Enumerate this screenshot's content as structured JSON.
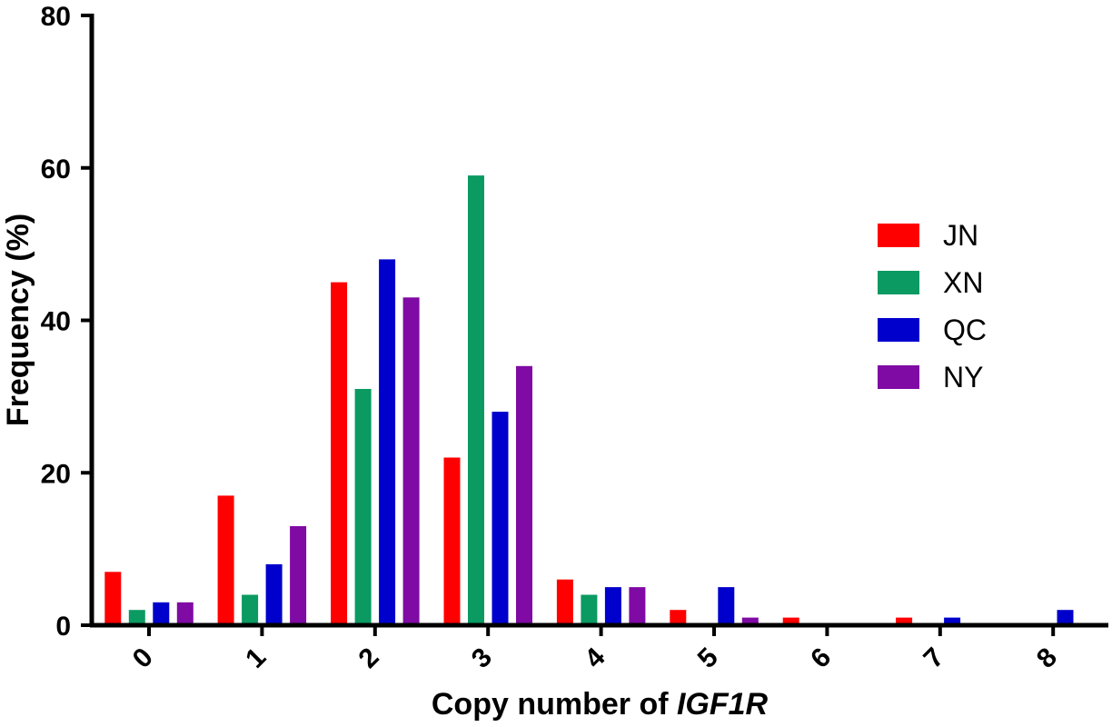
{
  "chart_data": {
    "type": "bar",
    "title": "",
    "xlabel": "Copy number of ",
    "xlabel_italic": "IGF1R",
    "ylabel": "Frequency (%)",
    "ylim": [
      0,
      80
    ],
    "yticks": [
      0,
      20,
      40,
      60,
      80
    ],
    "categories": [
      "0",
      "1",
      "2",
      "3",
      "4",
      "5",
      "6",
      "7",
      "8"
    ],
    "series": [
      {
        "name": "JN",
        "color": "#ff0000",
        "values": [
          7,
          17,
          45,
          22,
          6,
          2,
          1,
          1,
          0
        ]
      },
      {
        "name": "XN",
        "color": "#0a9a62",
        "values": [
          2,
          4,
          31,
          59,
          4,
          0,
          0,
          0,
          0
        ]
      },
      {
        "name": "QC",
        "color": "#0000cc",
        "values": [
          3,
          8,
          48,
          28,
          5,
          5,
          0,
          1,
          2
        ]
      },
      {
        "name": "NY",
        "color": "#7f0aa4",
        "values": [
          3,
          13,
          43,
          34,
          5,
          1,
          0,
          0,
          0
        ]
      }
    ],
    "legend_position": "right",
    "grid": false
  }
}
